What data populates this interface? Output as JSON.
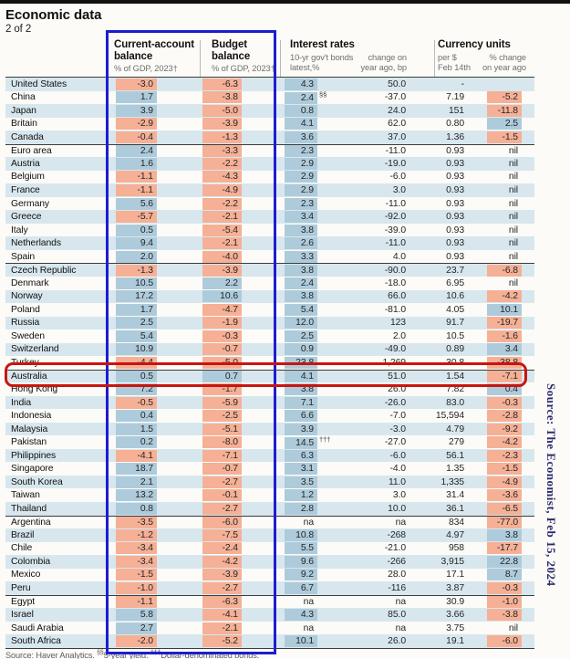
{
  "title": "Economic data",
  "subtitle": "2 of 2",
  "header": {
    "groups": [
      {
        "l1": "Current-account",
        "l2": "balance",
        "sub": "% of GDP, 2023†"
      },
      {
        "l1": "Budget",
        "l2": "balance",
        "sub": "% of GDP, 2023†"
      },
      {
        "title": "Interest rates",
        "sl1": "10-yr gov't bonds",
        "sl2": "latest,%",
        "sr1": "change on",
        "sr2": "year ago, bp"
      },
      {
        "title": "Currency units",
        "sl1": "per $",
        "sl2": "Feb 14th",
        "sr1": "% change",
        "sr2": "on year ago"
      }
    ]
  },
  "chart_data": {
    "type": "table",
    "title": "Economic data (2 of 2)",
    "columns": [
      "Country",
      "Current-account balance, % of GDP 2023",
      "Budget balance, % of GDP 2023",
      "Interest rates: 10-yr gov't bonds, latest %",
      "Interest rate note",
      "Interest rates: change on year ago, bp",
      "Currency units per $, Feb 14th",
      "Currency units: % change on year ago"
    ],
    "rows": [
      [
        "United States",
        "-3.0",
        "-6.3",
        "4.3",
        "",
        "50.0",
        "-",
        ""
      ],
      [
        "China",
        "1.7",
        "-3.8",
        "2.4",
        "§§",
        "-37.0",
        "7.19",
        "-5.2"
      ],
      [
        "Japan",
        "3.9",
        "-5.0",
        "0.8",
        "",
        "24.0",
        "151",
        "-11.8"
      ],
      [
        "Britain",
        "-2.9",
        "-3.9",
        "4.1",
        "",
        "62.0",
        "0.80",
        "2.5"
      ],
      [
        "Canada",
        "-0.4",
        "-1.3",
        "3.6",
        "",
        "37.0",
        "1.36",
        "-1.5"
      ],
      [
        "Euro area",
        "2.4",
        "-3.3",
        "2.3",
        "",
        "-11.0",
        "0.93",
        "nil"
      ],
      [
        "Austria",
        "1.6",
        "-2.2",
        "2.9",
        "",
        "-19.0",
        "0.93",
        "nil"
      ],
      [
        "Belgium",
        "-1.1",
        "-4.3",
        "2.9",
        "",
        "-6.0",
        "0.93",
        "nil"
      ],
      [
        "France",
        "-1.1",
        "-4.9",
        "2.9",
        "",
        "3.0",
        "0.93",
        "nil"
      ],
      [
        "Germany",
        "5.6",
        "-2.2",
        "2.3",
        "",
        "-11.0",
        "0.93",
        "nil"
      ],
      [
        "Greece",
        "-5.7",
        "-2.1",
        "3.4",
        "",
        "-92.0",
        "0.93",
        "nil"
      ],
      [
        "Italy",
        "0.5",
        "-5.4",
        "3.8",
        "",
        "-39.0",
        "0.93",
        "nil"
      ],
      [
        "Netherlands",
        "9.4",
        "-2.1",
        "2.6",
        "",
        "-11.0",
        "0.93",
        "nil"
      ],
      [
        "Spain",
        "2.0",
        "-4.0",
        "3.3",
        "",
        "4.0",
        "0.93",
        "nil"
      ],
      [
        "Czech Republic",
        "-1.3",
        "-3.9",
        "3.8",
        "",
        "-90.0",
        "23.7",
        "-6.8"
      ],
      [
        "Denmark",
        "10.5",
        "2.2",
        "2.4",
        "",
        "-18.0",
        "6.95",
        "nil"
      ],
      [
        "Norway",
        "17.2",
        "10.6",
        "3.8",
        "",
        "66.0",
        "10.6",
        "-4.2"
      ],
      [
        "Poland",
        "1.7",
        "-4.7",
        "5.4",
        "",
        "-81.0",
        "4.05",
        "10.1"
      ],
      [
        "Russia",
        "2.5",
        "-1.9",
        "12.0",
        "",
        "123",
        "91.7",
        "-19.7"
      ],
      [
        "Sweden",
        "5.4",
        "-0.3",
        "2.5",
        "",
        "2.0",
        "10.5",
        "-1.6"
      ],
      [
        "Switzerland",
        "10.9",
        "-0.7",
        "0.9",
        "",
        "-49.0",
        "0.89",
        "3.4"
      ],
      [
        "Turkey",
        "-4.4",
        "-5.0",
        "23.8",
        "",
        "1,269",
        "30.8",
        "-38.8"
      ],
      [
        "Australia",
        "0.5",
        "0.7",
        "4.1",
        "",
        "51.0",
        "1.54",
        "-7.1"
      ],
      [
        "Hong Kong",
        "7.2",
        "-1.7",
        "3.8",
        "",
        "26.0",
        "7.82",
        "0.4"
      ],
      [
        "India",
        "-0.5",
        "-5.9",
        "7.1",
        "",
        "-26.0",
        "83.0",
        "-0.3"
      ],
      [
        "Indonesia",
        "0.4",
        "-2.5",
        "6.6",
        "",
        "-7.0",
        "15,594",
        "-2.8"
      ],
      [
        "Malaysia",
        "1.5",
        "-5.1",
        "3.9",
        "",
        "-3.0",
        "4.79",
        "-9.2"
      ],
      [
        "Pakistan",
        "0.2",
        "-8.0",
        "14.5",
        "†††",
        "-27.0",
        "279",
        "-4.2"
      ],
      [
        "Philippines",
        "-4.1",
        "-7.1",
        "6.3",
        "",
        "-6.0",
        "56.1",
        "-2.3"
      ],
      [
        "Singapore",
        "18.7",
        "-0.7",
        "3.1",
        "",
        "-4.0",
        "1.35",
        "-1.5"
      ],
      [
        "South Korea",
        "2.1",
        "-2.7",
        "3.5",
        "",
        "11.0",
        "1,335",
        "-4.9"
      ],
      [
        "Taiwan",
        "13.2",
        "-0.1",
        "1.2",
        "",
        "3.0",
        "31.4",
        "-3.6"
      ],
      [
        "Thailand",
        "0.8",
        "-2.7",
        "2.8",
        "",
        "10.0",
        "36.1",
        "-6.5"
      ],
      [
        "Argentina",
        "-3.5",
        "-6.0",
        "na",
        "",
        "na",
        "834",
        "-77.0"
      ],
      [
        "Brazil",
        "-1.2",
        "-7.5",
        "10.8",
        "",
        "-268",
        "4.97",
        "3.8"
      ],
      [
        "Chile",
        "-3.4",
        "-2.4",
        "5.5",
        "",
        "-21.0",
        "958",
        "-17.7"
      ],
      [
        "Colombia",
        "-3.4",
        "-4.2",
        "9.6",
        "",
        "-266",
        "3,915",
        "22.8"
      ],
      [
        "Mexico",
        "-1.5",
        "-3.9",
        "9.2",
        "",
        "28.0",
        "17.1",
        "8.7"
      ],
      [
        "Peru",
        "-1.0",
        "-2.7",
        "6.7",
        "",
        "-116",
        "3.87",
        "-0.3"
      ],
      [
        "Egypt",
        "-1.1",
        "-6.3",
        "na",
        "",
        "na",
        "30.9",
        "-1.0"
      ],
      [
        "Israel",
        "5.8",
        "-4.1",
        "4.3",
        "",
        "85.0",
        "3.66",
        "-3.8"
      ],
      [
        "Saudi Arabia",
        "2.7",
        "-2.1",
        "na",
        "",
        "na",
        "3.75",
        "nil"
      ],
      [
        "South Africa",
        "-2.0",
        "-5.2",
        "10.1",
        "",
        "26.0",
        "19.1",
        "-6.0"
      ]
    ]
  },
  "table_layout": {
    "section_breaks": [
      5,
      14,
      22,
      33,
      39
    ],
    "highlight_row": 22
  },
  "footnote": {
    "p1": "Source: Haver Analytics.",
    "s1": "§§",
    "p2": "5-year yield.",
    "s2": "†††",
    "p3": "Dollar-denominated bonds."
  },
  "annotations": {
    "side_source": "Source: The Economist, Feb 15, 2024",
    "blue_box_target": "Current-account balance and Budget balance columns",
    "red_box_target": "Australia row"
  },
  "colors": {
    "row_stripe": "#d8e7ee",
    "positive_cell": "#aecbdb",
    "negative_cell": "#f5b096",
    "blue_box": "#1d1dd0",
    "red_box": "#c9150f",
    "side_text": "#2b2b70"
  }
}
